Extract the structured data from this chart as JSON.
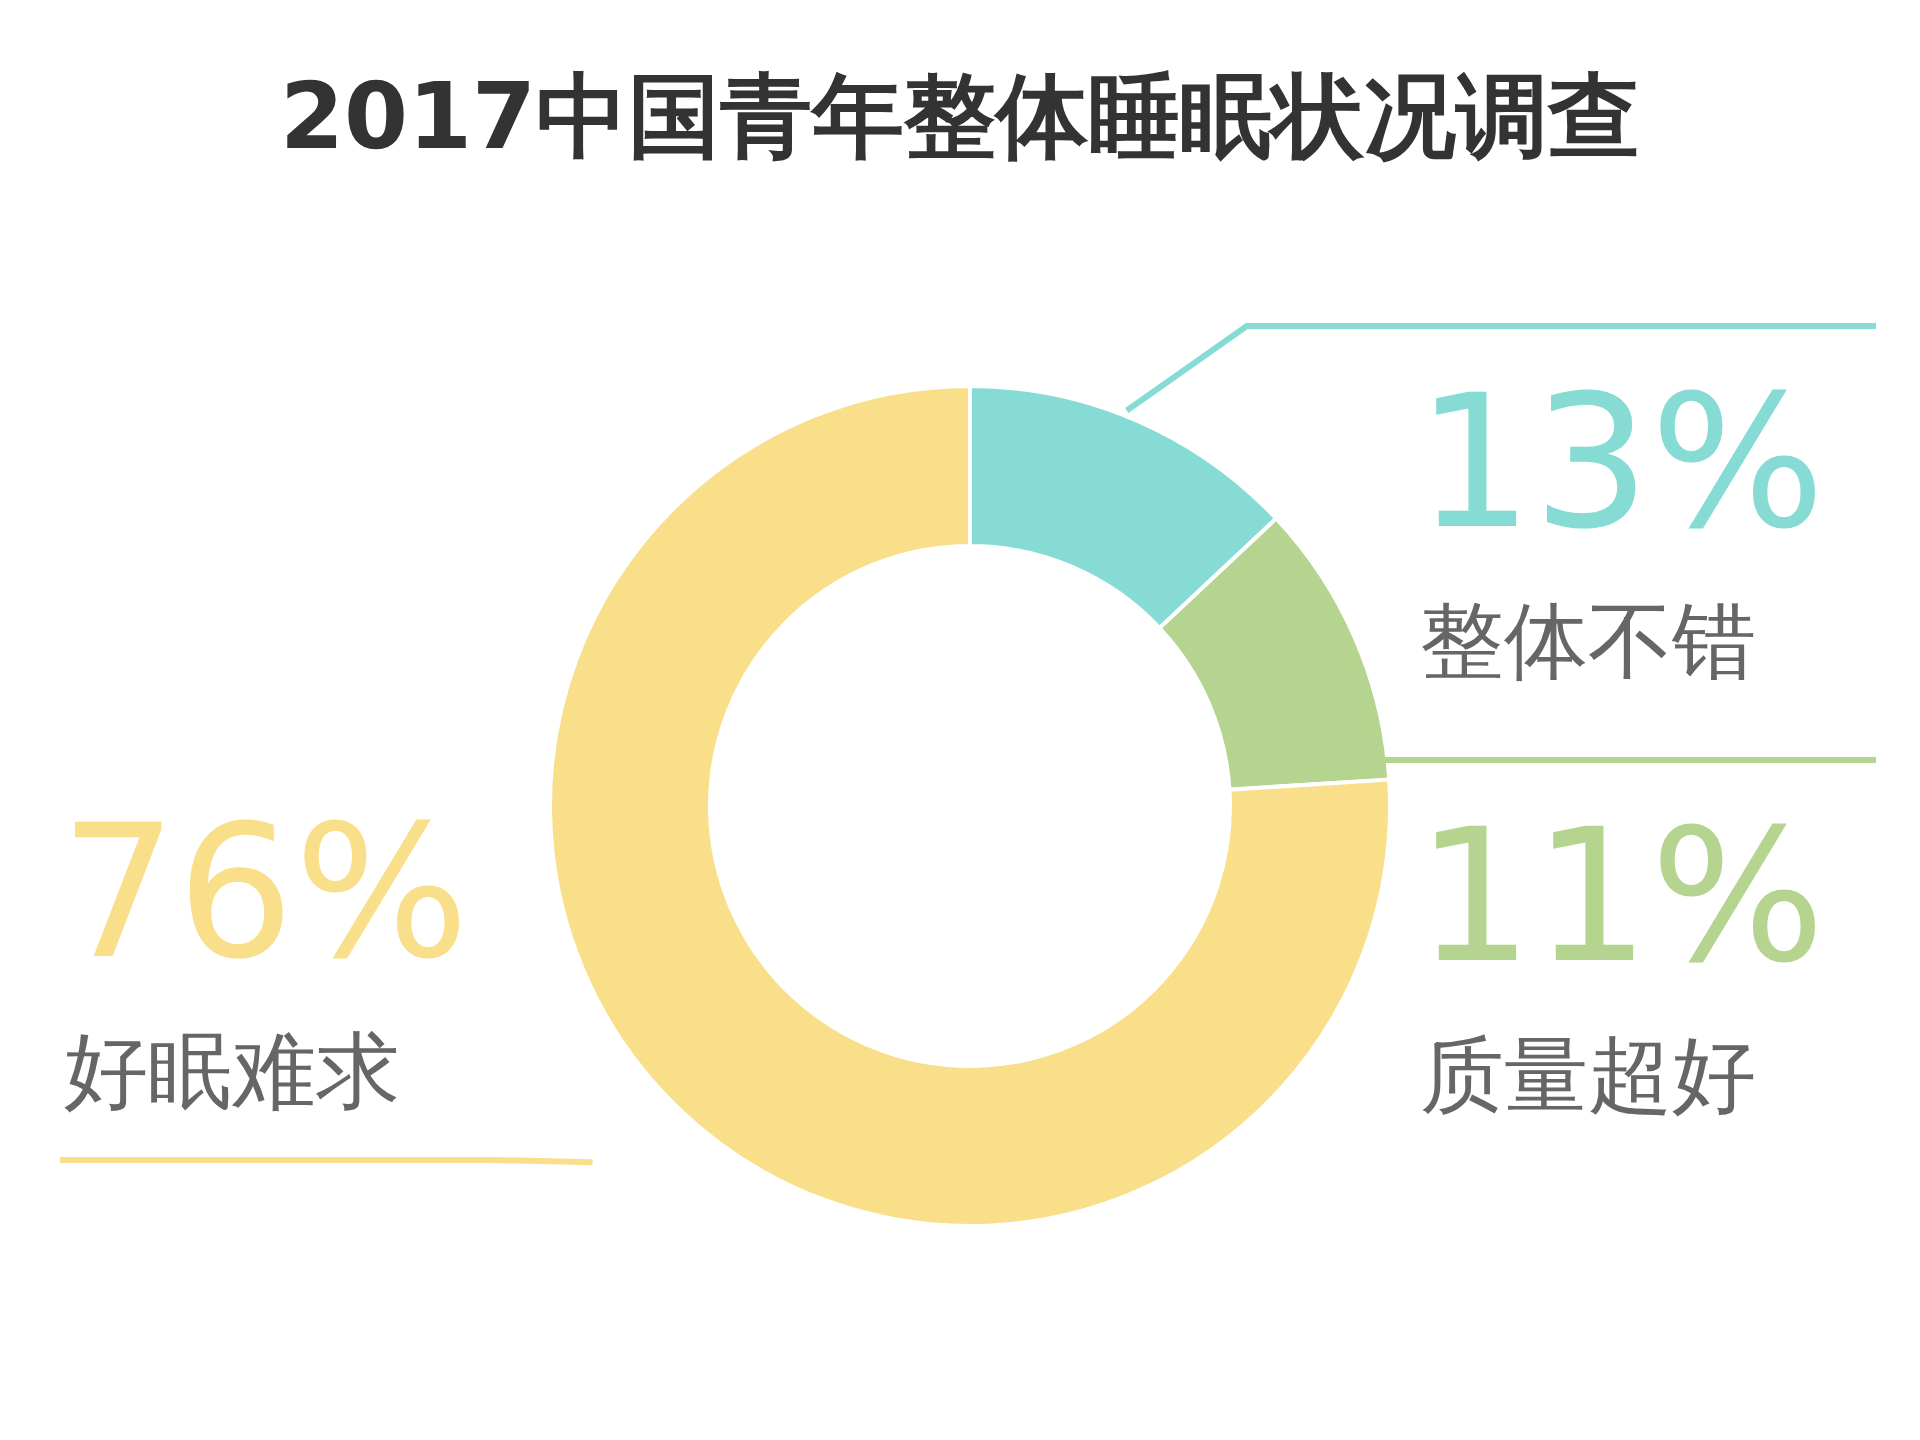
{
  "chart_data": {
    "type": "donut",
    "title": "2017中国青年整体睡眠状况调查",
    "categories": [
      "整体不错",
      "质量超好",
      "好眠难求"
    ],
    "values": [
      13,
      11,
      76
    ],
    "colors": [
      "#86dcd4",
      "#b5d48f",
      "#f9df8a"
    ],
    "value_labels": [
      "13%",
      "11%",
      "76%"
    ],
    "legend": false
  }
}
